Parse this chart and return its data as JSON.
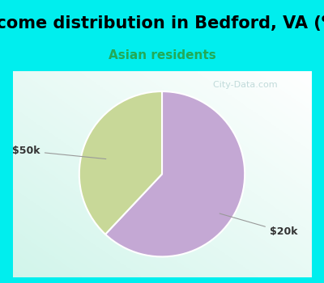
{
  "title": "Income distribution in Bedford, VA (%)",
  "subtitle": "Asian residents",
  "title_bg_color": "#00EEEE",
  "chart_bg_top": "#ffffff",
  "chart_bg_bottom": "#c8f0d8",
  "border_color": "#00EEEE",
  "border_width": 8,
  "slices": [
    {
      "label": "$20k",
      "value": 62,
      "color": "#C4A8D4"
    },
    {
      "label": "$50k",
      "value": 38,
      "color": "#C8D898"
    }
  ],
  "watermark": "  City-Data.com",
  "startangle": 90,
  "title_fontsize": 15,
  "subtitle_fontsize": 11,
  "subtitle_color": "#22AA55",
  "label_fontsize": 9,
  "label_color": "#333333"
}
